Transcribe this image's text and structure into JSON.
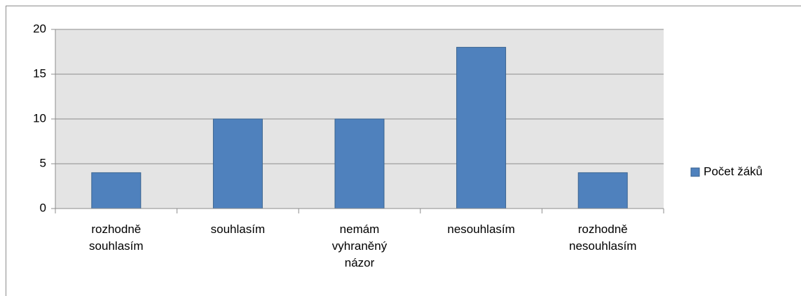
{
  "chart_data": {
    "type": "bar",
    "categories": [
      "rozhodně souhlasím",
      "souhlasím",
      "nemám vyhraněný názor",
      "nesouhlasím",
      "rozhodně nesouhlasím"
    ],
    "series": [
      {
        "name": "Počet žáků",
        "color": "#4f81bd",
        "values": [
          4,
          10,
          10,
          18,
          4
        ]
      }
    ],
    "ylim": [
      0,
      20
    ],
    "yticks": [
      0,
      5,
      10,
      15,
      20
    ],
    "grid": true,
    "legend": "right"
  }
}
